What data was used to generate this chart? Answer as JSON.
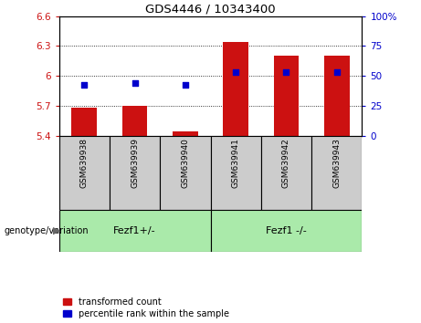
{
  "title": "GDS4446 / 10343400",
  "samples": [
    "GSM639938",
    "GSM639939",
    "GSM639940",
    "GSM639941",
    "GSM639942",
    "GSM639943"
  ],
  "bar_values": [
    5.68,
    5.7,
    5.44,
    6.34,
    6.2,
    6.2
  ],
  "blue_dot_values": [
    5.91,
    5.93,
    5.91,
    6.04,
    6.04,
    6.04
  ],
  "ylim": [
    5.4,
    6.6
  ],
  "y2lim": [
    0,
    100
  ],
  "yticks": [
    5.4,
    5.7,
    6.0,
    6.3,
    6.6
  ],
  "y2ticks": [
    0,
    25,
    50,
    75,
    100
  ],
  "ytick_labels": [
    "5.4",
    "5.7",
    "6",
    "6.3",
    "6.6"
  ],
  "y2tick_labels": [
    "0",
    "25",
    "50",
    "75",
    "100%"
  ],
  "bar_color": "#cc1111",
  "dot_color": "#0000cc",
  "group1_label": "Fezf1+/-",
  "group2_label": "Fezf1 -/-",
  "group1_indices": [
    0,
    1,
    2
  ],
  "group2_indices": [
    3,
    4,
    5
  ],
  "group_bg_color": "#aaeaaa",
  "sample_bg_color": "#cccccc",
  "legend_red_label": "transformed count",
  "legend_blue_label": "percentile rank within the sample",
  "genotype_label": "genotype/variation",
  "bar_bottom": 5.4,
  "bar_width": 0.5
}
